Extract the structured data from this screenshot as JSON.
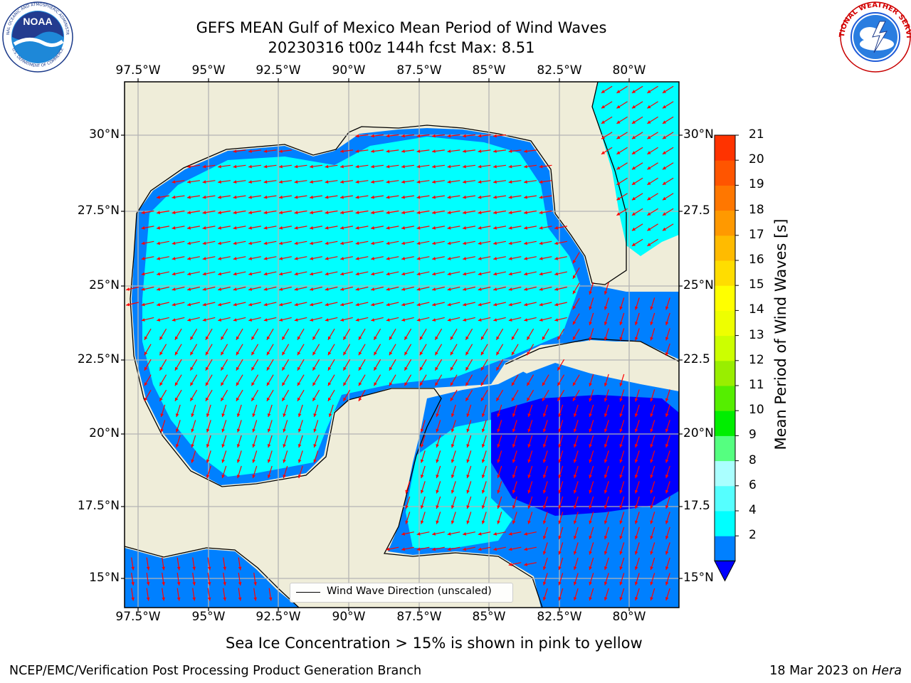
{
  "header": {
    "title_line1": "GEFS MEAN Gulf of Mexico Mean Period of Wind Waves",
    "title_line2": "20230316 t00z 144h fcst   Max: 8.51"
  },
  "logos": {
    "left": "NOAA",
    "left_ring_top": "NATIONAL OCEANIC AND ATMOSPHERIC ADMINISTRATION",
    "left_ring_bottom": "U.S. DEPARTMENT OF COMMERCE",
    "right_ring": "NATIONAL WEATHER SERVICE"
  },
  "map": {
    "lon_labels": [
      "97.5°W",
      "95°W",
      "92.5°W",
      "90°W",
      "87.5°W",
      "85°W",
      "82.5°W",
      "80°W"
    ],
    "lat_labels_left": [
      "30°N",
      "27.5°N",
      "25°N",
      "22.5°N",
      "20°N",
      "17.5°N",
      "15°N"
    ],
    "lat_labels_right": [
      "30°N",
      "27.5",
      "25°N",
      "22.5",
      "20°N",
      "17.5",
      "15°N"
    ],
    "legend_label": "Wind Wave Direction (unscaled)",
    "colors": {
      "land": "#efedd9",
      "level_2_4": "#0080ff",
      "level_4_6": "#00ffff",
      "level_6_8": "#55ffff",
      "below_2": "#0000ff",
      "arrow": "#ff0000"
    }
  },
  "colorbar": {
    "title": "Mean Period of Wind Waves [s]",
    "ticks": [
      "21",
      "20",
      "19",
      "18",
      "17",
      "16",
      "15",
      "14",
      "13",
      "12",
      "11",
      "10",
      "9",
      "8",
      "6",
      "4",
      "2"
    ],
    "colors_bottom_to_top": [
      "#0080ff",
      "#00ffff",
      "#55ffff",
      "#aaffff",
      "#55ff80",
      "#00ee00",
      "#55ee00",
      "#99ee00",
      "#ccff00",
      "#eeff00",
      "#ffff00",
      "#ffdd00",
      "#ffbb00",
      "#ff9900",
      "#ff7700",
      "#ff5500",
      "#ff3300",
      "#ff0000"
    ],
    "under_color": "#0000ff"
  },
  "subtitle": "Sea Ice Concentration > 15% is shown in pink to yellow",
  "footer": {
    "left": "NCEP/EMC/Verification Post Processing Product Generation Branch",
    "right_date": "18 Mar 2023 on",
    "right_host": "Hera"
  }
}
